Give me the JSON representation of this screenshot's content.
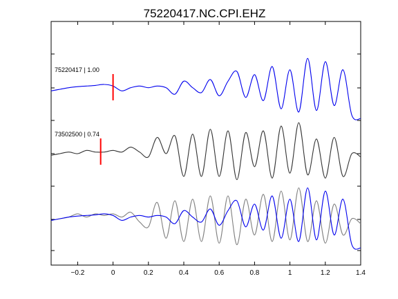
{
  "chart_data": {
    "type": "line",
    "title": "75220417.NC.CPI.EHZ",
    "xlabel": "",
    "ylabel": "",
    "xlim": [
      -0.35,
      1.4
    ],
    "xticks": [
      -0.2,
      0,
      0.2,
      0.4,
      0.6,
      0.8,
      1,
      1.2,
      1.4
    ],
    "xtick_labels": [
      "−0.2",
      "0",
      "0.2",
      "0.4",
      "0.6",
      "0.8",
      "1",
      "1.2",
      "1.4"
    ],
    "grid": false,
    "panels": [
      {
        "label": "75220417 | 1.00",
        "pick_time": 0.0,
        "series": [
          {
            "color": "#0000ee",
            "t": [
              -0.35,
              -0.3,
              -0.25,
              -0.2,
              -0.15,
              -0.1,
              -0.05,
              0,
              0.05,
              0.1,
              0.15,
              0.2,
              0.25,
              0.3,
              0.35,
              0.4,
              0.45,
              0.5,
              0.55,
              0.6,
              0.65,
              0.7,
              0.75,
              0.8,
              0.85,
              0.9,
              0.95,
              1.0,
              1.05,
              1.1,
              1.15,
              1.2,
              1.25,
              1.3,
              1.35,
              1.4
            ],
            "v": [
              -0.05,
              0.0,
              0.05,
              0.08,
              0.1,
              0.12,
              0.15,
              0.1,
              -0.05,
              0.05,
              0.1,
              0.05,
              0.1,
              0.05,
              -0.15,
              0.25,
              0.05,
              -0.1,
              0.3,
              -0.2,
              0.25,
              0.55,
              -0.25,
              0.45,
              -0.35,
              0.7,
              -0.6,
              0.6,
              -0.7,
              0.95,
              -0.65,
              0.85,
              -0.5,
              0.6,
              -0.8,
              -0.9
            ]
          }
        ]
      },
      {
        "label": "73502500 | 0.74",
        "pick_time": -0.07,
        "series": [
          {
            "color": "#333333",
            "t": [
              -0.35,
              -0.3,
              -0.25,
              -0.2,
              -0.15,
              -0.1,
              -0.05,
              0,
              0.05,
              0.1,
              0.15,
              0.2,
              0.25,
              0.3,
              0.35,
              0.4,
              0.45,
              0.5,
              0.55,
              0.6,
              0.65,
              0.7,
              0.75,
              0.8,
              0.85,
              0.9,
              0.95,
              1.0,
              1.05,
              1.1,
              1.15,
              1.2,
              1.25,
              1.3,
              1.35,
              1.4
            ],
            "v": [
              -0.05,
              0.0,
              0.05,
              0.0,
              0.1,
              0.05,
              0.05,
              0.1,
              0.05,
              0.2,
              0.05,
              -0.1,
              0.5,
              0.0,
              0.55,
              -0.7,
              0.6,
              -0.7,
              0.75,
              -0.7,
              0.7,
              -0.8,
              0.65,
              -0.4,
              0.7,
              -0.75,
              0.85,
              -0.6,
              0.95,
              -0.65,
              0.45,
              -0.75,
              0.5,
              -0.7,
              0.0,
              -0.1
            ]
          }
        ]
      },
      {
        "label": "",
        "pick_time": null,
        "series": [
          {
            "color": "#808080",
            "t": [
              -0.35,
              -0.3,
              -0.25,
              -0.2,
              -0.15,
              -0.1,
              -0.05,
              0,
              0.05,
              0.1,
              0.15,
              0.2,
              0.25,
              0.3,
              0.35,
              0.4,
              0.45,
              0.5,
              0.55,
              0.6,
              0.65,
              0.7,
              0.75,
              0.8,
              0.85,
              0.9,
              0.95,
              1.0,
              1.05,
              1.1,
              1.15,
              1.2,
              1.25,
              1.3,
              1.35,
              1.4
            ],
            "v": [
              -0.05,
              0.0,
              0.05,
              0.15,
              0.05,
              0.15,
              0.1,
              0.15,
              0.05,
              0.2,
              -0.1,
              -0.25,
              0.5,
              -0.6,
              0.55,
              -0.7,
              0.6,
              -0.7,
              0.7,
              -0.75,
              0.7,
              -0.8,
              0.6,
              -0.5,
              0.75,
              -0.7,
              0.85,
              -0.65,
              0.95,
              -0.7,
              0.55,
              -0.75,
              0.45,
              -0.5,
              0.0,
              -0.15
            ]
          },
          {
            "color": "#0000ee",
            "t": [
              -0.35,
              -0.3,
              -0.25,
              -0.2,
              -0.15,
              -0.1,
              -0.05,
              0,
              0.05,
              0.1,
              0.15,
              0.2,
              0.25,
              0.3,
              0.35,
              0.4,
              0.45,
              0.5,
              0.55,
              0.6,
              0.65,
              0.7,
              0.75,
              0.8,
              0.85,
              0.9,
              0.95,
              1.0,
              1.05,
              1.1,
              1.15,
              1.2,
              1.25,
              1.3,
              1.35,
              1.4
            ],
            "v": [
              -0.05,
              0.0,
              0.05,
              0.08,
              0.1,
              0.12,
              0.15,
              0.1,
              -0.05,
              0.05,
              0.1,
              0.05,
              0.1,
              0.05,
              -0.15,
              0.25,
              0.05,
              -0.1,
              0.3,
              -0.2,
              0.25,
              0.55,
              -0.25,
              0.45,
              -0.35,
              0.7,
              -0.6,
              0.6,
              -0.7,
              0.95,
              -0.65,
              0.85,
              -0.5,
              0.6,
              -0.8,
              -0.9
            ]
          }
        ]
      }
    ]
  }
}
